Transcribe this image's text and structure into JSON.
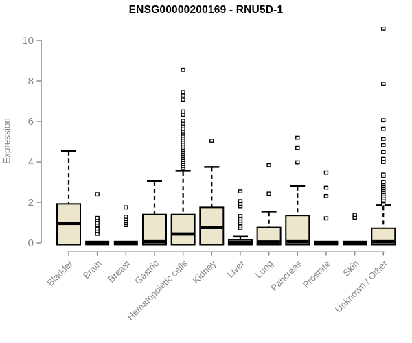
{
  "chart_data": {
    "type": "boxplot",
    "title": "ENSG00000200169 - RNU5D-1",
    "ylabel": "Expression",
    "xlabel": "",
    "ylim": [
      0,
      10.6
    ],
    "yticks": [
      0,
      2,
      4,
      6,
      8,
      10
    ],
    "grid": false,
    "legend": "none",
    "colors": {
      "box_fill": "#ece6cd",
      "box_stroke": "#000000",
      "axis": "#8a8a8a",
      "tick_label": "#858585",
      "title": "#000000",
      "background": "#ffffff"
    },
    "categories": [
      "Bladder",
      "Brain",
      "Breast",
      "Gastric",
      "Hematopoietic cells",
      "Kidney",
      "Liver",
      "Lung",
      "Pancreas",
      "Prostate",
      "Skin",
      "Unknown / Other"
    ],
    "series": [
      {
        "name": "Bladder",
        "low": 0,
        "q1": 0,
        "median": 0.96,
        "q3": 1.92,
        "high": 4.55,
        "outliers": []
      },
      {
        "name": "Brain",
        "low": 0,
        "q1": 0,
        "median": 0,
        "q3": 0,
        "high": 0,
        "outliers": [
          0.45,
          0.59,
          0.7,
          0.88,
          1.0,
          1.13,
          1.23,
          2.4
        ]
      },
      {
        "name": "Breast",
        "low": 0,
        "q1": 0,
        "median": 0,
        "q3": 0,
        "high": 0,
        "outliers": [
          0.88,
          0.97,
          1.07,
          1.18,
          1.29,
          1.75
        ]
      },
      {
        "name": "Gastric",
        "low": 0,
        "q1": 0,
        "median": 0.06,
        "q3": 1.4,
        "high": 3.05,
        "outliers": []
      },
      {
        "name": "Hematopoietic cells",
        "low": 0,
        "q1": 0,
        "median": 0.44,
        "q3": 1.4,
        "high": 3.55,
        "outliers": [
          3.7,
          3.8,
          3.9,
          4.0,
          4.1,
          4.2,
          4.3,
          4.4,
          4.5,
          4.6,
          4.7,
          4.8,
          4.9,
          5.0,
          5.1,
          5.2,
          5.3,
          5.4,
          5.5,
          5.63,
          5.76,
          5.9,
          6.03,
          6.33,
          6.49,
          7.08,
          7.28,
          7.45,
          8.55
        ]
      },
      {
        "name": "Kidney",
        "low": 0,
        "q1": 0,
        "median": 0.76,
        "q3": 1.75,
        "high": 3.75,
        "outliers": [
          5.05
        ]
      },
      {
        "name": "Liver",
        "low": 0,
        "q1": 0,
        "median": 0.04,
        "q3": 0.17,
        "high": 0.31,
        "outliers": [
          0.72,
          0.81,
          0.98,
          1.1,
          1.21,
          1.32,
          1.81,
          1.92,
          2.06,
          2.54
        ]
      },
      {
        "name": "Lung",
        "low": 0,
        "q1": 0,
        "median": 0.05,
        "q3": 0.76,
        "high": 1.55,
        "outliers": [
          2.43,
          3.84
        ]
      },
      {
        "name": "Pancreas",
        "low": 0,
        "q1": 0,
        "median": 0.06,
        "q3": 1.35,
        "high": 2.82,
        "outliers": [
          3.98,
          4.69,
          5.2
        ]
      },
      {
        "name": "Prostate",
        "low": 0,
        "q1": 0,
        "median": 0,
        "q3": 0,
        "high": 0,
        "outliers": [
          1.21,
          2.31,
          2.73,
          3.47
        ]
      },
      {
        "name": "Skin",
        "low": 0,
        "q1": 0,
        "median": 0,
        "q3": 0,
        "high": 0,
        "outliers": [
          1.25,
          1.38
        ]
      },
      {
        "name": "Unknown / Other",
        "low": 0,
        "q1": 0,
        "median": 0.06,
        "q3": 0.72,
        "high": 1.85,
        "outliers": [
          1.9,
          2.1,
          2.2,
          2.3,
          2.4,
          2.5,
          2.6,
          2.7,
          2.8,
          2.9,
          3.0,
          3.3,
          3.38,
          4.0,
          4.15,
          4.49,
          4.82,
          5.13,
          5.64,
          6.06,
          7.86,
          10.58
        ]
      }
    ]
  }
}
